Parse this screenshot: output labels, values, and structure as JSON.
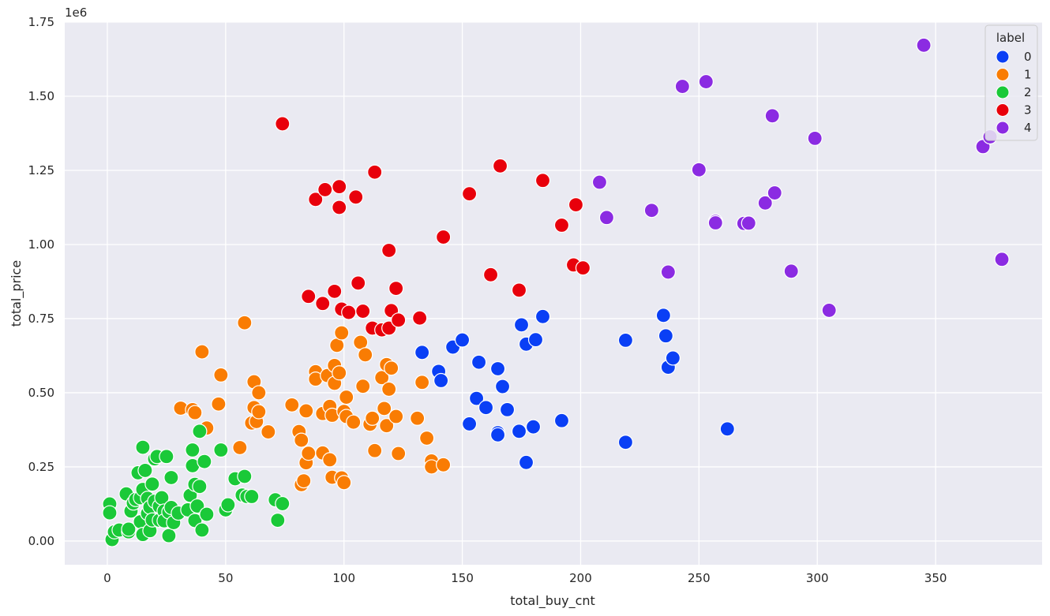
{
  "chart_data": {
    "type": "scatter",
    "xlabel": "total_buy_cnt",
    "ylabel": "total_price",
    "offset_label": "1e6",
    "xlim": [
      -18,
      395
    ],
    "ylim": [
      -0.08,
      1.75
    ],
    "x_ticks": [
      0,
      50,
      100,
      150,
      200,
      250,
      300,
      350
    ],
    "y_ticks": [
      0.0,
      0.25,
      0.5,
      0.75,
      1.0,
      1.25,
      1.5,
      1.75
    ],
    "y_tick_labels": [
      "0.00",
      "0.25",
      "0.50",
      "0.75",
      "1.00",
      "1.25",
      "1.50",
      "1.75"
    ],
    "grid": true,
    "legend": {
      "title": "label",
      "position": "top-right"
    },
    "series": [
      {
        "name": "0",
        "color": "#0a3ff5",
        "points": [
          [
            133,
            0.636
          ],
          [
            140,
            0.572
          ],
          [
            141,
            0.541
          ],
          [
            146,
            0.654
          ],
          [
            150,
            0.678
          ],
          [
            153,
            0.395
          ],
          [
            156,
            0.481
          ],
          [
            157,
            0.603
          ],
          [
            160,
            0.45
          ],
          [
            165,
            0.581
          ],
          [
            165,
            0.365
          ],
          [
            165,
            0.358
          ],
          [
            167,
            0.521
          ],
          [
            169,
            0.443
          ],
          [
            174,
            0.37
          ],
          [
            175,
            0.729
          ],
          [
            177,
            0.664
          ],
          [
            177,
            0.265
          ],
          [
            180,
            0.385
          ],
          [
            181,
            0.679
          ],
          [
            184,
            0.757
          ],
          [
            192,
            0.406
          ],
          [
            219,
            0.677
          ],
          [
            219,
            0.333
          ],
          [
            235,
            0.761
          ],
          [
            236,
            0.692
          ],
          [
            237,
            0.586
          ],
          [
            239,
            0.617
          ],
          [
            262,
            0.378
          ]
        ]
      },
      {
        "name": "1",
        "color": "#f97c03",
        "points": [
          [
            31,
            0.448
          ],
          [
            36,
            0.443
          ],
          [
            37,
            0.433
          ],
          [
            40,
            0.638
          ],
          [
            42,
            0.381
          ],
          [
            47,
            0.462
          ],
          [
            48,
            0.56
          ],
          [
            56,
            0.315
          ],
          [
            58,
            0.736
          ],
          [
            61,
            0.398
          ],
          [
            62,
            0.537
          ],
          [
            62,
            0.45
          ],
          [
            63,
            0.403
          ],
          [
            64,
            0.5
          ],
          [
            64,
            0.436
          ],
          [
            68,
            0.368
          ],
          [
            78,
            0.459
          ],
          [
            81,
            0.369
          ],
          [
            82,
            0.34
          ],
          [
            82,
            0.19
          ],
          [
            83,
            0.203
          ],
          [
            84,
            0.439
          ],
          [
            84,
            0.264
          ],
          [
            85,
            0.296
          ],
          [
            88,
            0.571
          ],
          [
            88,
            0.546
          ],
          [
            91,
            0.43
          ],
          [
            91,
            0.297
          ],
          [
            93,
            0.558
          ],
          [
            94,
            0.454
          ],
          [
            94,
            0.274
          ],
          [
            95,
            0.424
          ],
          [
            95,
            0.215
          ],
          [
            96,
            0.592
          ],
          [
            96,
            0.532
          ],
          [
            97,
            0.66
          ],
          [
            98,
            0.567
          ],
          [
            99,
            0.702
          ],
          [
            99,
            0.213
          ],
          [
            100,
            0.437
          ],
          [
            100,
            0.197
          ],
          [
            101,
            0.485
          ],
          [
            101,
            0.42
          ],
          [
            104,
            0.401
          ],
          [
            107,
            0.67
          ],
          [
            108,
            0.522
          ],
          [
            109,
            0.628
          ],
          [
            111,
            0.394
          ],
          [
            112,
            0.414
          ],
          [
            113,
            0.305
          ],
          [
            116,
            0.551
          ],
          [
            117,
            0.447
          ],
          [
            118,
            0.595
          ],
          [
            118,
            0.389
          ],
          [
            119,
            0.512
          ],
          [
            120,
            0.583
          ],
          [
            122,
            0.42
          ],
          [
            123,
            0.295
          ],
          [
            131,
            0.414
          ],
          [
            133,
            0.535
          ],
          [
            135,
            0.347
          ],
          [
            137,
            0.27
          ],
          [
            137,
            0.25
          ],
          [
            142,
            0.257
          ]
        ]
      },
      {
        "name": "2",
        "color": "#1ac938",
        "points": [
          [
            1,
            0.125
          ],
          [
            1,
            0.095
          ],
          [
            2,
            0.005
          ],
          [
            3,
            0.031
          ],
          [
            5,
            0.037
          ],
          [
            8,
            0.159
          ],
          [
            9,
            0.031
          ],
          [
            9,
            0.04
          ],
          [
            10,
            0.101
          ],
          [
            11,
            0.128
          ],
          [
            12,
            0.14
          ],
          [
            13,
            0.23
          ],
          [
            14,
            0.065
          ],
          [
            14,
            0.146
          ],
          [
            15,
            0.316
          ],
          [
            15,
            0.022
          ],
          [
            15,
            0.174
          ],
          [
            16,
            0.238
          ],
          [
            17,
            0.144
          ],
          [
            17,
            0.093
          ],
          [
            18,
            0.114
          ],
          [
            18,
            0.035
          ],
          [
            19,
            0.192
          ],
          [
            19,
            0.071
          ],
          [
            20,
            0.134
          ],
          [
            20,
            0.277
          ],
          [
            21,
            0.285
          ],
          [
            22,
            0.117
          ],
          [
            22,
            0.07
          ],
          [
            23,
            0.146
          ],
          [
            24,
            0.101
          ],
          [
            24,
            0.068
          ],
          [
            25,
            0.285
          ],
          [
            26,
            0.018
          ],
          [
            26,
            0.098
          ],
          [
            27,
            0.214
          ],
          [
            27,
            0.113
          ],
          [
            28,
            0.062
          ],
          [
            30,
            0.094
          ],
          [
            34,
            0.105
          ],
          [
            35,
            0.154
          ],
          [
            36,
            0.307
          ],
          [
            36,
            0.254
          ],
          [
            37,
            0.191
          ],
          [
            37,
            0.069
          ],
          [
            38,
            0.118
          ],
          [
            39,
            0.37
          ],
          [
            39,
            0.184
          ],
          [
            40,
            0.037
          ],
          [
            41,
            0.268
          ],
          [
            42,
            0.09
          ],
          [
            48,
            0.307
          ],
          [
            50,
            0.105
          ],
          [
            51,
            0.122
          ],
          [
            54,
            0.21
          ],
          [
            57,
            0.155
          ],
          [
            58,
            0.218
          ],
          [
            59,
            0.15
          ],
          [
            61,
            0.15
          ],
          [
            71,
            0.139
          ],
          [
            72,
            0.07
          ],
          [
            74,
            0.126
          ]
        ]
      },
      {
        "name": "3",
        "color": "#e8000b",
        "points": [
          [
            74,
            1.407
          ],
          [
            85,
            0.825
          ],
          [
            88,
            1.152
          ],
          [
            91,
            0.801
          ],
          [
            92,
            1.185
          ],
          [
            96,
            0.842
          ],
          [
            98,
            1.195
          ],
          [
            98,
            1.125
          ],
          [
            99,
            0.782
          ],
          [
            102,
            0.771
          ],
          [
            105,
            1.16
          ],
          [
            106,
            0.87
          ],
          [
            108,
            0.775
          ],
          [
            112,
            0.718
          ],
          [
            113,
            1.244
          ],
          [
            116,
            0.712
          ],
          [
            119,
            0.98
          ],
          [
            119,
            0.718
          ],
          [
            120,
            0.777
          ],
          [
            122,
            0.852
          ],
          [
            123,
            0.745
          ],
          [
            132,
            0.752
          ],
          [
            142,
            1.025
          ],
          [
            153,
            1.171
          ],
          [
            162,
            0.898
          ],
          [
            166,
            1.265
          ],
          [
            174,
            0.846
          ],
          [
            184,
            1.216
          ],
          [
            192,
            1.065
          ],
          [
            197,
            0.931
          ],
          [
            198,
            1.134
          ],
          [
            201,
            0.921
          ]
        ]
      },
      {
        "name": "4",
        "color": "#8b2be2",
        "points": [
          [
            208,
            1.21
          ],
          [
            211,
            1.091
          ],
          [
            230,
            1.115
          ],
          [
            237,
            0.907
          ],
          [
            243,
            1.533
          ],
          [
            250,
            1.252
          ],
          [
            253,
            1.549
          ],
          [
            257,
            1.078
          ],
          [
            257,
            1.073
          ],
          [
            269,
            1.071
          ],
          [
            271,
            1.072
          ],
          [
            278,
            1.14
          ],
          [
            281,
            1.434
          ],
          [
            282,
            1.174
          ],
          [
            289,
            0.91
          ],
          [
            299,
            1.358
          ],
          [
            305,
            0.778
          ],
          [
            345,
            1.672
          ],
          [
            370,
            1.33
          ],
          [
            373,
            1.363
          ],
          [
            378,
            0.95
          ]
        ]
      }
    ]
  }
}
